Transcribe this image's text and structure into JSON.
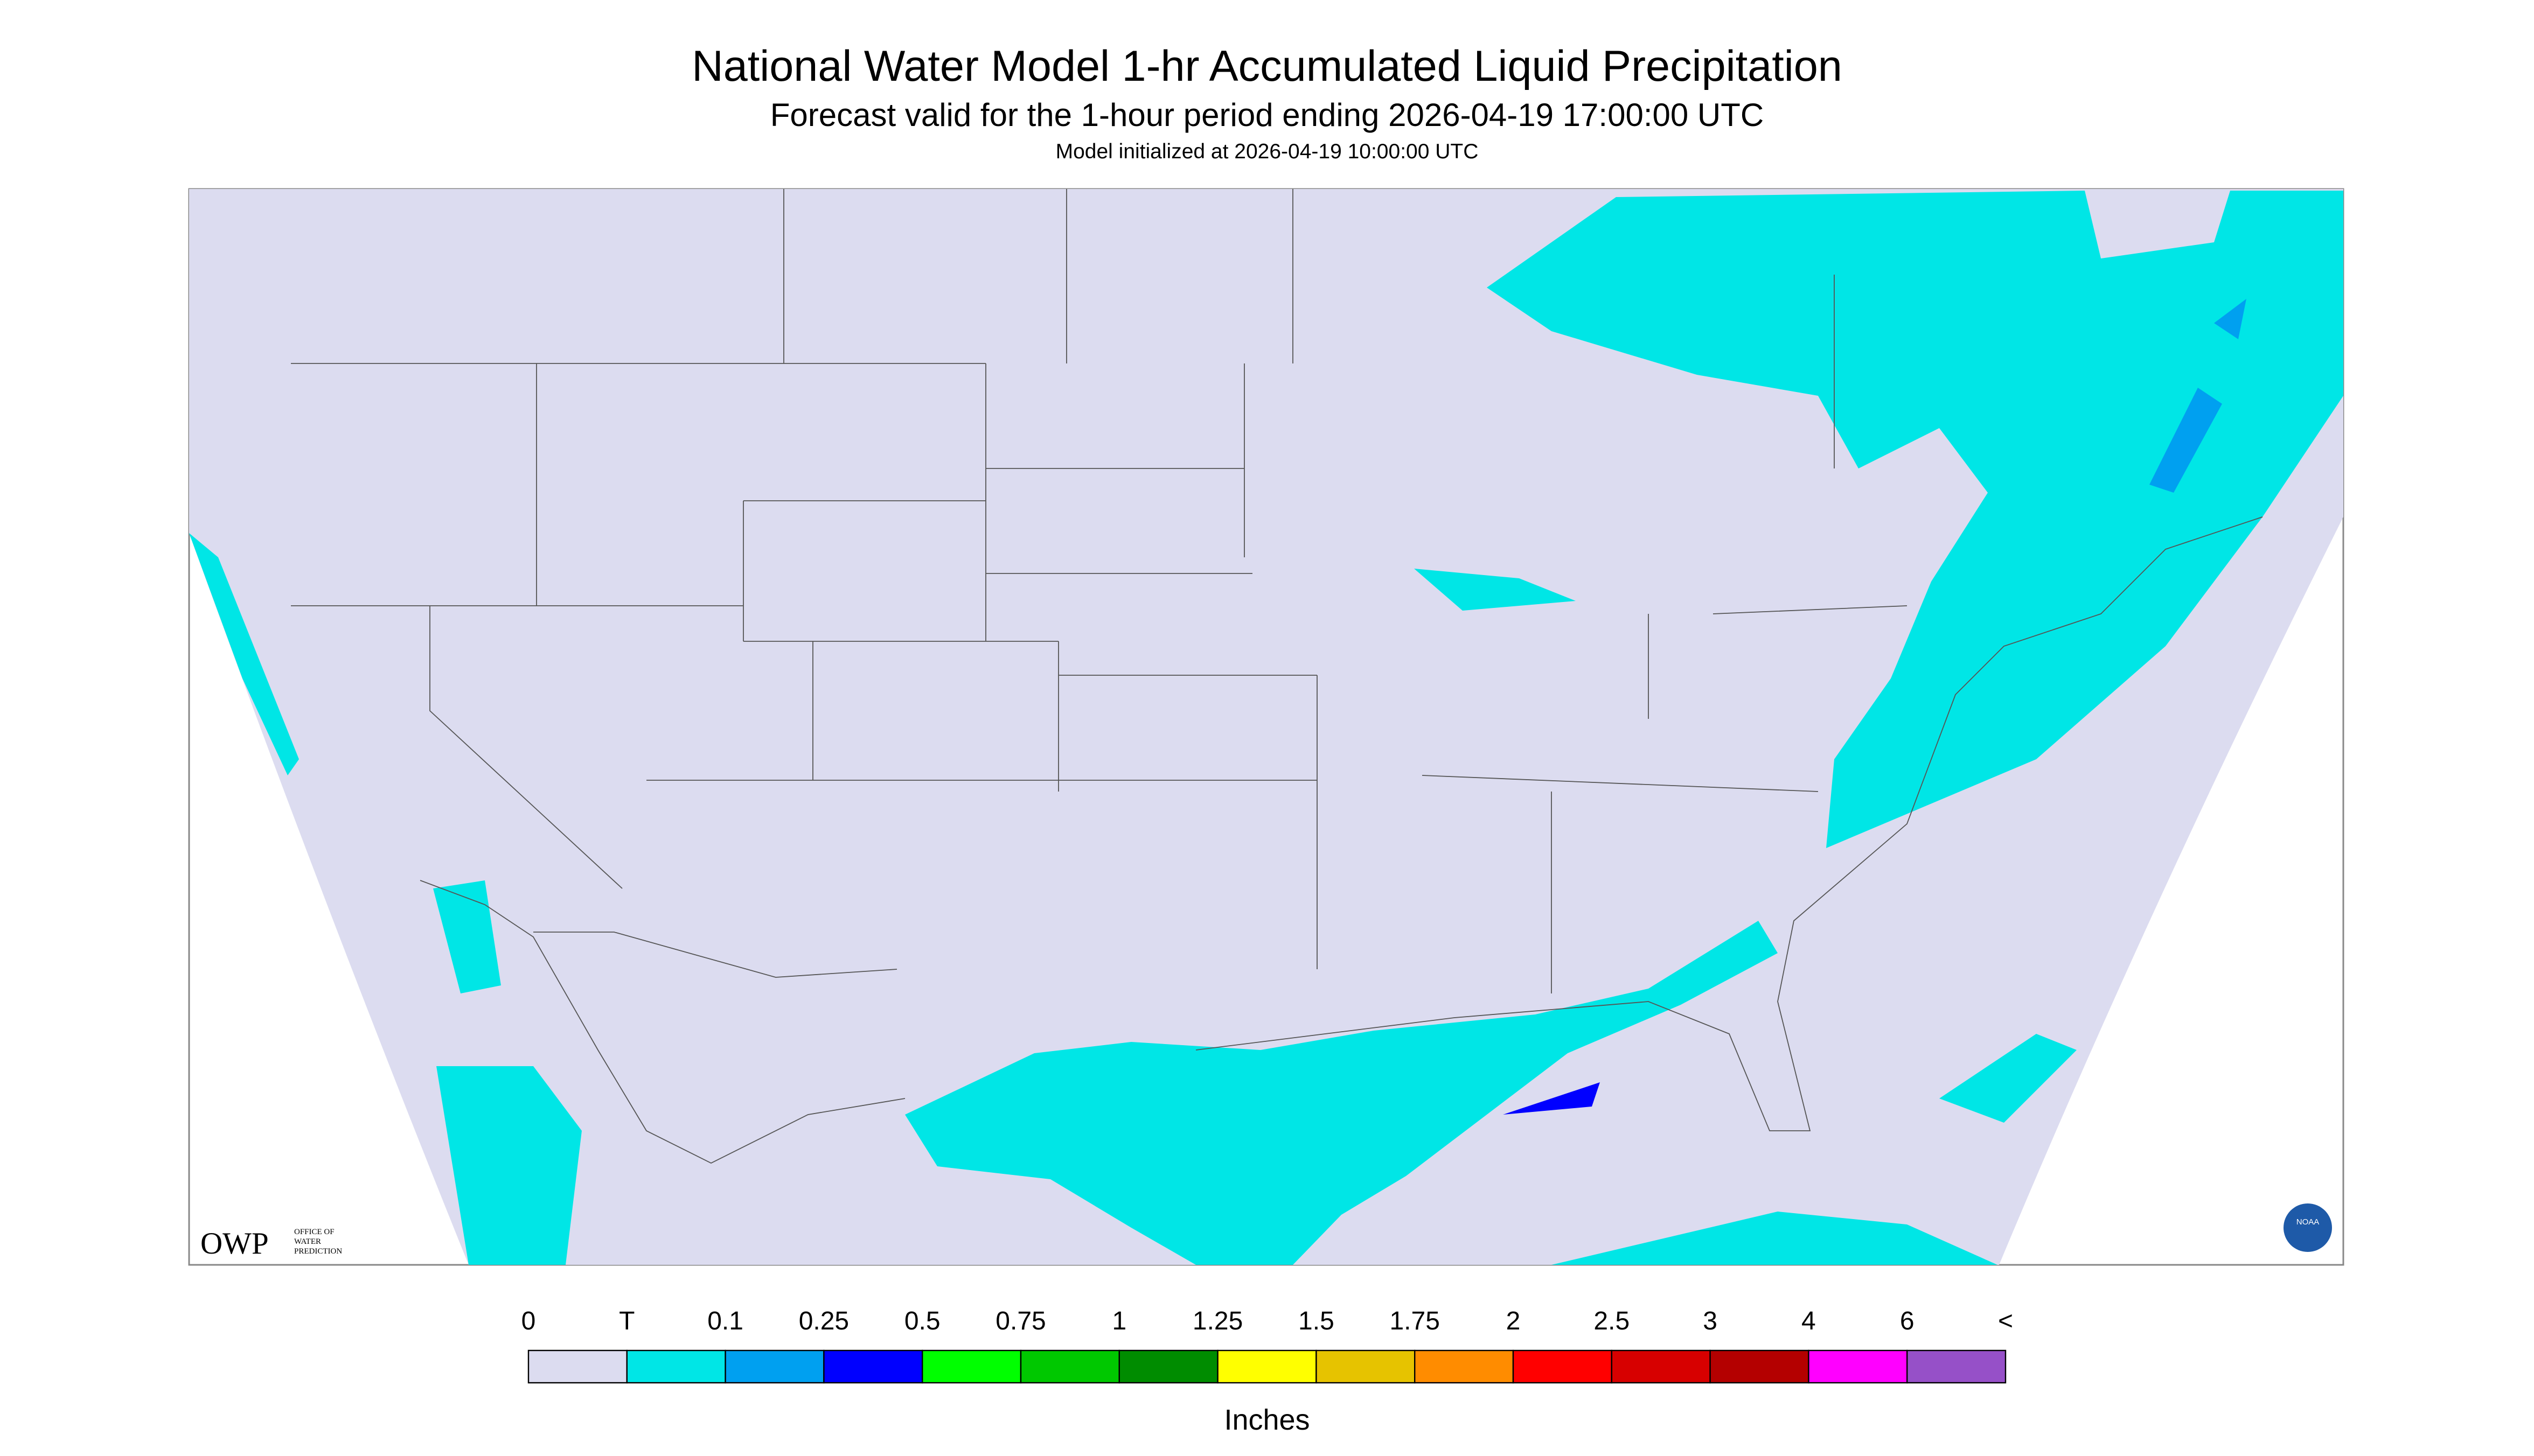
{
  "header": {
    "title": "National Water Model 1-hr Accumulated Liquid Precipitation",
    "subtitle": "Forecast valid for the 1-hour period ending 2026-04-19 17:00:00 UTC",
    "initialized": "Model initialized at 2026-04-19 10:00:00 UTC"
  },
  "logos": {
    "owp": "OWP",
    "owp_text": [
      "OFFICE OF",
      "WATER",
      "PREDICTION"
    ],
    "noaa": "NOAA"
  },
  "legend": {
    "labels": [
      "0",
      "T",
      "0.1",
      "0.25",
      "0.5",
      "0.75",
      "1",
      "1.25",
      "1.5",
      "1.75",
      "2",
      "2.5",
      "3",
      "4",
      "6",
      "<"
    ],
    "colors": [
      "#dcdcf0",
      "#00e6e6",
      "#00a0f0",
      "#0000ff",
      "#00ff00",
      "#00c800",
      "#008c00",
      "#ffff00",
      "#e6c300",
      "#ff8c00",
      "#ff0000",
      "#d70000",
      "#b40000",
      "#ff00ff",
      "#9650c8"
    ],
    "unit": "Inches"
  }
}
